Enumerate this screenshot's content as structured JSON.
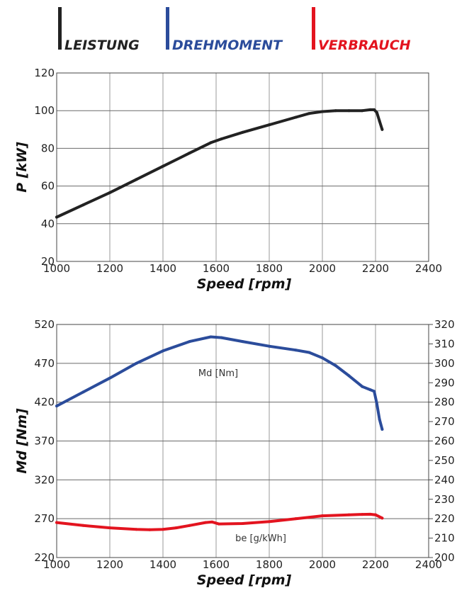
{
  "legend": [
    {
      "label": "LEISTUNG",
      "color": "#222222"
    },
    {
      "label": "DREHMOMENT",
      "color": "#2b4c9b"
    },
    {
      "label": "VERBRAUCH",
      "color": "#e3141f"
    }
  ],
  "chart_data": [
    {
      "type": "line",
      "xlabel": "Speed [rpm]",
      "ylabel": "P [kW]",
      "xlim": [
        1000,
        2400
      ],
      "ylim": [
        20,
        120
      ],
      "xticks": [
        1000,
        1200,
        1400,
        1600,
        1800,
        2000,
        2200,
        2400
      ],
      "yticks": [
        20,
        40,
        60,
        80,
        100,
        120
      ],
      "grid": true,
      "series": [
        {
          "color": "#222222",
          "x": [
            1000,
            1100,
            1200,
            1300,
            1400,
            1500,
            1580,
            1620,
            1700,
            1800,
            1900,
            1950,
            2000,
            2050,
            2100,
            2150,
            2180,
            2195,
            2205,
            2215,
            2225
          ],
          "y": [
            43.5,
            50,
            56.5,
            63.5,
            70.5,
            77.5,
            83,
            85,
            88.5,
            92.5,
            96.5,
            98.5,
            99.5,
            100,
            100,
            100,
            100.5,
            100.5,
            99,
            94.5,
            90
          ]
        }
      ]
    },
    {
      "type": "line",
      "xlabel": "Speed [rpm]",
      "ylabel": "Md [Nm]",
      "xlim": [
        1000,
        2400
      ],
      "ylim": [
        220,
        520
      ],
      "ylim_right": [
        200,
        320
      ],
      "xticks": [
        1000,
        1200,
        1400,
        1600,
        1800,
        2000,
        2200,
        2400
      ],
      "yticks": [
        220,
        270,
        320,
        370,
        420,
        470,
        520
      ],
      "yticks_right": [
        200,
        210,
        220,
        230,
        240,
        250,
        260,
        270,
        280,
        290,
        300,
        310,
        320
      ],
      "grid": true,
      "annotations": [
        "Md [Nm]",
        "be [g/kWh]"
      ],
      "series": [
        {
          "name": "Md [Nm]",
          "axis": "left",
          "color": "#2b4c9b",
          "x": [
            1000,
            1100,
            1200,
            1300,
            1400,
            1500,
            1580,
            1620,
            1700,
            1800,
            1900,
            1950,
            2000,
            2050,
            2100,
            2150,
            2180,
            2195,
            2205,
            2215,
            2225
          ],
          "y": [
            415,
            433,
            451,
            470,
            486,
            498,
            504,
            503,
            498,
            492,
            487,
            484,
            477,
            467,
            454,
            440,
            436,
            434,
            418,
            398,
            385
          ]
        },
        {
          "name": "be [g/kWh]",
          "axis": "right",
          "color": "#e3141f",
          "x": [
            1000,
            1100,
            1200,
            1300,
            1350,
            1400,
            1450,
            1500,
            1560,
            1585,
            1610,
            1700,
            1800,
            1900,
            2000,
            2100,
            2150,
            2180,
            2200,
            2225
          ],
          "y": [
            218,
            216.5,
            215.3,
            214.5,
            214.3,
            214.5,
            215.3,
            216.5,
            218,
            218.3,
            217.3,
            217.5,
            218.5,
            220,
            221.5,
            222,
            222.2,
            222.3,
            222,
            220.3
          ]
        }
      ]
    }
  ]
}
